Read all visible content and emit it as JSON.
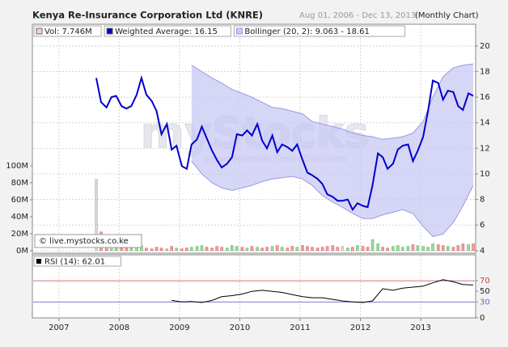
{
  "chart_data": [
    {
      "type": "line",
      "title": "Kenya Re-Insurance Corporation Ltd (KNRE)",
      "subtitle": "Aug 01, 2006 - Dec 13, 2013",
      "period": "(Monthly Chart)",
      "watermark": "myStocks",
      "watermark_tagline": "Smart Methods Smart Decisions",
      "copyright": "© live.mystocks.co.ke",
      "ylim": [
        3.8,
        21.7
      ],
      "yticks": [
        4,
        6,
        8,
        10,
        12,
        14,
        16,
        18,
        20
      ],
      "y2lim": [
        -3,
        267
      ],
      "y2ticks": [
        {
          "value": 0,
          "label": "0M"
        },
        {
          "value": 20,
          "label": "20M"
        },
        {
          "value": 40,
          "label": "40M"
        },
        {
          "value": 60,
          "label": "60M"
        },
        {
          "value": 80,
          "label": "80M"
        },
        {
          "value": 100,
          "label": "100M"
        }
      ],
      "grid": true,
      "x": [
        2007.62,
        2007.7,
        2007.79,
        2007.87,
        2007.95,
        2008.04,
        2008.12,
        2008.2,
        2008.29,
        2008.37,
        2008.45,
        2008.54,
        2008.62,
        2008.7,
        2008.79,
        2008.87,
        2008.95,
        2009.04,
        2009.12,
        2009.2,
        2009.29,
        2009.37,
        2009.45,
        2009.54,
        2009.62,
        2009.7,
        2009.79,
        2009.87,
        2009.95,
        2010.04,
        2010.12,
        2010.2,
        2010.29,
        2010.37,
        2010.45,
        2010.54,
        2010.62,
        2010.7,
        2010.79,
        2010.87,
        2010.95,
        2011.04,
        2011.12,
        2011.2,
        2011.29,
        2011.37,
        2011.45,
        2011.54,
        2011.62,
        2011.7,
        2011.79,
        2011.87,
        2011.95,
        2012.04,
        2012.12,
        2012.2,
        2012.29,
        2012.37,
        2012.45,
        2012.54,
        2012.62,
        2012.7,
        2012.79,
        2012.87,
        2012.95,
        2013.04,
        2013.12,
        2013.2,
        2013.29,
        2013.37,
        2013.45,
        2013.54,
        2013.62,
        2013.7,
        2013.79,
        2013.87
      ],
      "series": [
        {
          "name": "Vol: 7.746M",
          "type": "bar",
          "axis": "y2",
          "color": "#bbbbbb",
          "up_color": "#66bb66",
          "down_color": "#dd6666",
          "values": [
            84,
            22,
            8,
            6,
            4,
            3,
            5,
            3,
            4,
            6,
            3,
            2,
            4,
            3,
            2,
            5,
            3,
            2,
            3,
            4,
            5,
            6,
            4,
            3,
            5,
            4,
            3,
            6,
            5,
            4,
            3,
            5,
            4,
            3,
            4,
            5,
            6,
            4,
            3,
            5,
            4,
            6,
            5,
            4,
            3,
            4,
            5,
            6,
            4,
            5,
            3,
            4,
            6,
            5,
            4,
            13,
            8,
            4,
            3,
            5,
            6,
            4,
            5,
            7,
            6,
            5,
            4,
            8,
            7,
            6,
            5,
            4,
            6,
            8,
            7,
            8
          ]
        },
        {
          "name": "Weighted Average: 16.15",
          "type": "line",
          "color": "#0000cc",
          "values": [
            17.5,
            15.6,
            15.2,
            16.0,
            16.1,
            15.3,
            15.1,
            15.3,
            16.2,
            17.5,
            16.2,
            15.7,
            14.9,
            13.1,
            13.9,
            11.9,
            12.2,
            10.6,
            10.4,
            12.3,
            12.7,
            13.7,
            12.8,
            11.8,
            11.1,
            10.5,
            10.8,
            11.3,
            13.1,
            13.0,
            13.4,
            13.0,
            13.9,
            12.6,
            12.0,
            13.0,
            11.7,
            12.3,
            12.1,
            11.8,
            12.3,
            11.1,
            10.1,
            9.9,
            9.6,
            9.2,
            8.4,
            8.2,
            7.9,
            7.9,
            8.0,
            7.2,
            7.7,
            7.5,
            7.4,
            9.1,
            11.6,
            11.3,
            10.4,
            10.8,
            11.9,
            12.2,
            12.3,
            11.0,
            11.8,
            12.9,
            14.9,
            17.3,
            17.1,
            15.8,
            16.5,
            16.4,
            15.3,
            15.0,
            16.3,
            16.1
          ]
        },
        {
          "name": "Bollinger (20, 2): 9.063 - 18.61",
          "type": "band",
          "color": "#c8c8f4",
          "edge_color": "#9a9ae0",
          "x": [
            2009.2,
            2009.37,
            2009.54,
            2009.7,
            2009.87,
            2010.04,
            2010.2,
            2010.37,
            2010.54,
            2010.7,
            2010.87,
            2011.04,
            2011.2,
            2011.37,
            2011.54,
            2011.7,
            2011.87,
            2012.04,
            2012.2,
            2012.37,
            2012.54,
            2012.7,
            2012.87,
            2013.04,
            2013.2,
            2013.37,
            2013.54,
            2013.7,
            2013.87
          ],
          "upper": [
            18.5,
            18.0,
            17.5,
            17.1,
            16.6,
            16.3,
            16.0,
            15.6,
            15.2,
            15.1,
            14.9,
            14.7,
            14.1,
            13.9,
            13.7,
            13.5,
            13.2,
            13.0,
            12.9,
            12.7,
            12.8,
            12.9,
            13.2,
            14.1,
            16.0,
            17.6,
            18.3,
            18.5,
            18.6
          ],
          "lower": [
            11.0,
            10.0,
            9.3,
            8.9,
            8.7,
            8.9,
            9.1,
            9.4,
            9.6,
            9.7,
            9.8,
            9.6,
            9.1,
            8.3,
            7.8,
            7.4,
            6.9,
            6.5,
            6.5,
            6.8,
            7.0,
            7.2,
            6.9,
            5.9,
            5.1,
            5.3,
            6.2,
            7.5,
            9.1
          ]
        }
      ]
    },
    {
      "type": "line",
      "xlim": [
        2006.56,
        2013.91
      ],
      "xticks": [
        2007,
        2008,
        2009,
        2010,
        2011,
        2012,
        2013
      ],
      "ylim": [
        0,
        119
      ],
      "yticks": [
        0,
        30,
        50,
        70
      ],
      "levels": [
        {
          "value": 70,
          "color": "#cc4444"
        },
        {
          "value": 30,
          "color": "#6666cc"
        }
      ],
      "series": [
        {
          "name": "RSI (14): 62.01",
          "color": "#000000",
          "x": [
            2008.87,
            2009.04,
            2009.2,
            2009.37,
            2009.54,
            2009.7,
            2009.87,
            2010.04,
            2010.2,
            2010.37,
            2010.54,
            2010.7,
            2010.87,
            2011.04,
            2011.2,
            2011.37,
            2011.54,
            2011.7,
            2011.87,
            2012.04,
            2012.2,
            2012.37,
            2012.54,
            2012.7,
            2012.87,
            2013.04,
            2013.2,
            2013.37,
            2013.54,
            2013.7,
            2013.87
          ],
          "values": [
            33,
            30,
            31,
            29,
            33,
            40,
            42,
            45,
            50,
            52,
            50,
            48,
            44,
            40,
            38,
            38,
            35,
            32,
            30,
            29,
            32,
            55,
            52,
            56,
            58,
            60,
            66,
            72,
            68,
            63,
            62
          ]
        }
      ]
    }
  ]
}
